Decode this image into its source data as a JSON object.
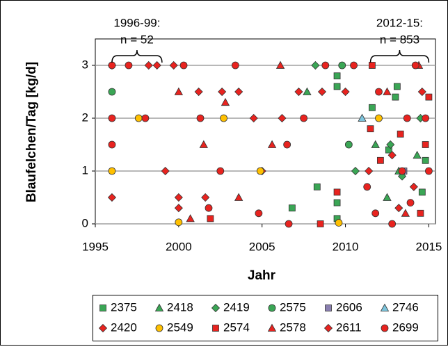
{
  "chart_data": {
    "type": "scatter",
    "x_label": "Jahr",
    "y_label": "Blaufelchen/Tag [kg/d]",
    "xlim": [
      1995,
      2015.4
    ],
    "ylim": [
      0,
      3.5
    ],
    "xticks": [
      1995,
      2000,
      2005,
      2010,
      2015
    ],
    "yticks": [
      0,
      1,
      2,
      3
    ],
    "grid": true,
    "annotations": [
      {
        "lines": [
          "1996-99:",
          "n = 52"
        ],
        "range": [
          1996,
          1999
        ]
      },
      {
        "lines": [
          "2012-15:",
          "n = 853"
        ],
        "range": [
          2011.5,
          2015
        ]
      }
    ],
    "series": [
      {
        "name": "2375",
        "marker": "square",
        "color": "#3aa655",
        "x": [
          2009.5,
          2009.5,
          2009.5,
          2009.5,
          2008.3,
          2006.8,
          2011.6,
          2013.1,
          2013.0,
          2014.6,
          2012.6,
          2014.8
        ],
        "values": [
          2.8,
          2.6,
          0.4,
          0.1,
          0.7,
          0.3,
          2.2,
          2.6,
          2.4,
          0.6,
          1.4,
          1.2
        ]
      },
      {
        "name": "2418",
        "marker": "triangle",
        "color": "#3aa655",
        "x": [
          2007.7,
          2012.5,
          2013.2,
          2014.3,
          2011.8
        ],
        "values": [
          2.5,
          0.5,
          1.0,
          1.3,
          1.5
        ]
      },
      {
        "name": "2419",
        "marker": "diamond",
        "color": "#3aa655",
        "x": [
          2008.2,
          2010.6,
          2012.7,
          2013.4,
          2014.5
        ],
        "values": [
          3,
          1,
          1.5,
          0.9,
          2.0
        ]
      },
      {
        "name": "2575",
        "marker": "circle",
        "color": "#3aa655",
        "x": [
          1996,
          2010.2,
          2009.8
        ],
        "values": [
          2.5,
          1.5,
          3
        ]
      },
      {
        "name": "2606",
        "marker": "square",
        "color": "#8a7fb0",
        "x": [
          2013.5
        ],
        "values": [
          1.0
        ]
      },
      {
        "name": "2746",
        "marker": "triangle",
        "color": "#7cc4dc",
        "x": [
          2011
        ],
        "values": [
          2.0
        ]
      },
      {
        "name": "2420",
        "marker": "diamond",
        "color": "#e8231f",
        "x": [
          1996,
          1996,
          1998.2,
          1998.7,
          1999.2,
          2000,
          2000,
          2001.2,
          2002.6,
          2003.6,
          2005,
          2006.2,
          2007.2,
          2008.6,
          2011.4,
          2013.2,
          2014.6
        ],
        "values": [
          0.5,
          3,
          3,
          3,
          1,
          0.5,
          0.3,
          2.5,
          2.5,
          2.5,
          1,
          2,
          2.5,
          2.5,
          1,
          0.3,
          2.5
        ]
      },
      {
        "name": "2549",
        "marker": "circle",
        "color": "#ffc000",
        "x": [
          1996,
          1997.6,
          2000,
          2002.7,
          2009.6,
          2012,
          2004.9
        ],
        "values": [
          1,
          2,
          0.03,
          2,
          0.02,
          2,
          1
        ]
      },
      {
        "name": "2574",
        "marker": "square",
        "color": "#e8231f",
        "x": [
          2001.9,
          2008.5,
          2009.5,
          2011.5,
          2012.1,
          2013.3,
          2014.5,
          2015,
          2014.8,
          2011.6
        ],
        "values": [
          0.1,
          0,
          0.6,
          1.8,
          1.2,
          1.7,
          0.2,
          2.4,
          1.5,
          3
        ]
      },
      {
        "name": "2578",
        "marker": "triangle",
        "color": "#e8231f",
        "x": [
          2000,
          2000.7,
          2001.5,
          2002.8,
          2003.6,
          2005.6,
          2006.1,
          2012.5,
          2013.6,
          2014.4
        ],
        "values": [
          2.5,
          0.1,
          1.5,
          2.3,
          0.5,
          1.5,
          3,
          2.5,
          0.2,
          3
        ]
      },
      {
        "name": "2611",
        "marker": "diamond",
        "color": "#e8231f",
        "x": [
          1999.7,
          2001.6,
          2004.5,
          2010,
          2012.8,
          2014.1
        ],
        "values": [
          3,
          0.5,
          2,
          2.5,
          1.3,
          0.7
        ]
      },
      {
        "name": "2699",
        "marker": "circle",
        "color": "#e8231f",
        "x": [
          1996,
          1996,
          1996,
          1997,
          1998,
          2000.3,
          2001.3,
          2001.8,
          2002.5,
          2003.4,
          2004.8,
          2006.6,
          2006.5,
          2007.5,
          2008.8,
          2010.5,
          2011.3,
          2012,
          2012.8,
          2013.4,
          2013.9,
          2014.2,
          2014.8,
          2015,
          2011.8,
          2013.7
        ],
        "values": [
          3,
          2,
          1.5,
          3,
          2,
          3,
          2,
          0.3,
          1,
          3,
          0.2,
          0,
          1.5,
          2,
          3,
          3,
          0.7,
          2.5,
          0,
          1,
          0.4,
          3,
          2,
          1,
          0.2,
          2
        ]
      }
    ]
  }
}
